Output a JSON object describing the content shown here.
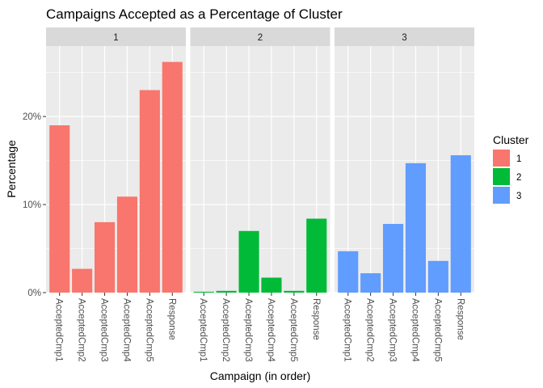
{
  "chart_data": {
    "type": "bar",
    "title": "Campaigns Accepted as a Percentage of Cluster",
    "xlabel": "Campaign (in order)",
    "ylabel": "Percentage",
    "ylim": [
      0,
      0.28
    ],
    "yticks": [
      0,
      0.1,
      0.2
    ],
    "ytick_labels": [
      "0%",
      "10%",
      "20%"
    ],
    "categories": [
      "AcceptedCmp1",
      "AcceptedCmp2",
      "AcceptedCmp3",
      "AcceptedCmp4",
      "AcceptedCmp5",
      "Response"
    ],
    "grid": true,
    "legend_position": "right",
    "legend_title": "Cluster",
    "facets": [
      {
        "label": "1",
        "name": "1",
        "color": "#F8766D",
        "values": [
          0.19,
          0.027,
          0.08,
          0.109,
          0.23,
          0.262
        ]
      },
      {
        "label": "2",
        "name": "2",
        "color": "#00BA38",
        "values": [
          0.001,
          0.002,
          0.07,
          0.017,
          0.002,
          0.084
        ]
      },
      {
        "label": "3",
        "name": "3",
        "color": "#619CFF",
        "values": [
          0.047,
          0.022,
          0.078,
          0.147,
          0.036,
          0.156
        ]
      }
    ]
  }
}
